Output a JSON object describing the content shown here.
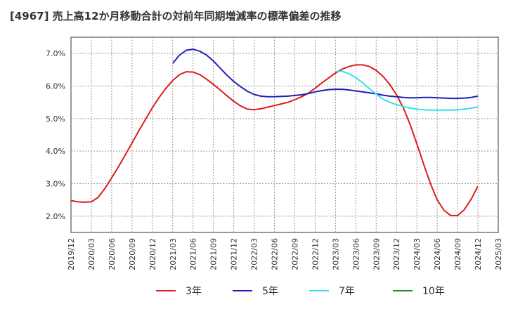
{
  "chart_data": {
    "type": "line",
    "title": "[4967]  売上高12か月移動合計の対前年同期増減率の標準偏差の推移",
    "x_ticks": [
      "2019/12",
      "2020/03",
      "2020/06",
      "2020/09",
      "2020/12",
      "2021/03",
      "2021/06",
      "2021/09",
      "2021/12",
      "2022/03",
      "2022/06",
      "2022/09",
      "2022/12",
      "2023/03",
      "2023/06",
      "2023/09",
      "2023/12",
      "2024/03",
      "2024/06",
      "2024/09",
      "2024/12",
      "2025/03"
    ],
    "y_ticks": [
      "2.0%",
      "3.0%",
      "4.0%",
      "5.0%",
      "6.0%",
      "7.0%"
    ],
    "ylim": [
      1.5,
      7.5
    ],
    "grid": true,
    "legend_position": "bottom",
    "series": [
      {
        "name": "3年",
        "color": "#dd1c1c",
        "x": [
          "2019/12",
          "2020/01",
          "2020/02",
          "2020/03",
          "2020/04",
          "2020/05",
          "2020/06",
          "2020/07",
          "2020/08",
          "2020/09",
          "2020/10",
          "2020/11",
          "2020/12",
          "2021/01",
          "2021/02",
          "2021/03",
          "2021/04",
          "2021/05",
          "2021/06",
          "2021/07",
          "2021/08",
          "2021/09",
          "2021/10",
          "2021/11",
          "2021/12",
          "2022/01",
          "2022/02",
          "2022/03",
          "2022/04",
          "2022/05",
          "2022/06",
          "2022/07",
          "2022/08",
          "2022/09",
          "2022/10",
          "2022/11",
          "2022/12",
          "2023/01",
          "2023/02",
          "2023/03",
          "2023/04",
          "2023/05",
          "2023/06",
          "2023/07",
          "2023/08",
          "2023/09",
          "2023/10",
          "2023/11",
          "2023/12",
          "2024/01",
          "2024/02",
          "2024/03",
          "2024/04",
          "2024/05",
          "2024/06",
          "2024/07",
          "2024/08",
          "2024/09",
          "2024/10",
          "2024/11",
          "2024/12"
        ],
        "values": [
          2.48,
          2.44,
          2.43,
          2.44,
          2.58,
          2.85,
          3.18,
          3.52,
          3.88,
          4.25,
          4.62,
          4.98,
          5.33,
          5.65,
          5.93,
          6.17,
          6.35,
          6.44,
          6.43,
          6.35,
          6.21,
          6.05,
          5.88,
          5.7,
          5.53,
          5.39,
          5.29,
          5.27,
          5.3,
          5.35,
          5.4,
          5.45,
          5.5,
          5.58,
          5.67,
          5.78,
          5.93,
          6.1,
          6.25,
          6.4,
          6.52,
          6.6,
          6.65,
          6.65,
          6.6,
          6.48,
          6.3,
          6.05,
          5.73,
          5.33,
          4.82,
          4.22,
          3.6,
          3.0,
          2.5,
          2.18,
          2.02,
          2.02,
          2.2,
          2.52,
          2.92
        ]
      },
      {
        "name": "5年",
        "color": "#1e1eb4",
        "x": [
          "2021/03",
          "2021/04",
          "2021/05",
          "2021/06",
          "2021/07",
          "2021/08",
          "2021/09",
          "2021/10",
          "2021/11",
          "2021/12",
          "2022/01",
          "2022/02",
          "2022/03",
          "2022/04",
          "2022/05",
          "2022/06",
          "2022/07",
          "2022/08",
          "2022/09",
          "2022/10",
          "2022/11",
          "2022/12",
          "2023/01",
          "2023/02",
          "2023/03",
          "2023/04",
          "2023/05",
          "2023/06",
          "2023/07",
          "2023/08",
          "2023/09",
          "2023/10",
          "2023/11",
          "2023/12",
          "2024/01",
          "2024/02",
          "2024/03",
          "2024/04",
          "2024/05",
          "2024/06",
          "2024/07",
          "2024/08",
          "2024/09",
          "2024/10",
          "2024/11",
          "2024/12"
        ],
        "values": [
          6.7,
          6.95,
          7.1,
          7.13,
          7.07,
          6.95,
          6.77,
          6.55,
          6.33,
          6.14,
          5.98,
          5.84,
          5.74,
          5.69,
          5.67,
          5.67,
          5.68,
          5.69,
          5.71,
          5.73,
          5.77,
          5.82,
          5.86,
          5.89,
          5.9,
          5.9,
          5.88,
          5.85,
          5.82,
          5.79,
          5.76,
          5.72,
          5.69,
          5.67,
          5.65,
          5.64,
          5.64,
          5.65,
          5.65,
          5.64,
          5.63,
          5.62,
          5.62,
          5.63,
          5.65,
          5.69
        ]
      },
      {
        "name": "7年",
        "color": "#33e0ee",
        "x": [
          "2023/03",
          "2023/04",
          "2023/05",
          "2023/06",
          "2023/07",
          "2023/08",
          "2023/09",
          "2023/10",
          "2023/11",
          "2023/12",
          "2024/01",
          "2024/02",
          "2024/03",
          "2024/04",
          "2024/05",
          "2024/06",
          "2024/07",
          "2024/08",
          "2024/09",
          "2024/10",
          "2024/11",
          "2024/12"
        ],
        "values": [
          6.45,
          6.45,
          6.38,
          6.26,
          6.1,
          5.92,
          5.75,
          5.6,
          5.5,
          5.43,
          5.37,
          5.32,
          5.29,
          5.27,
          5.26,
          5.26,
          5.26,
          5.26,
          5.27,
          5.29,
          5.32,
          5.36
        ]
      },
      {
        "name": "10年",
        "color": "#1e8c1e",
        "x": [],
        "values": []
      }
    ]
  }
}
